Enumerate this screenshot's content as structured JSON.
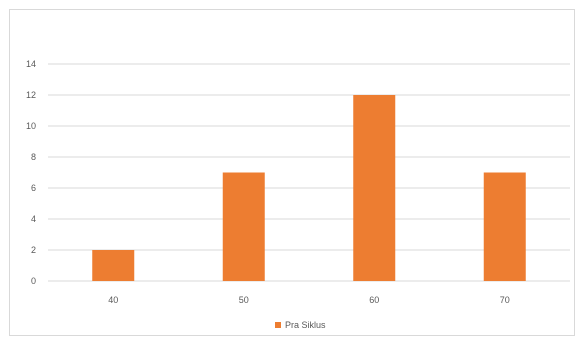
{
  "chart_data": {
    "type": "bar",
    "categories": [
      "40",
      "50",
      "60",
      "70"
    ],
    "series": [
      {
        "name": "Pra Siklus",
        "values": [
          2,
          7,
          12,
          7
        ]
      }
    ],
    "ylim": [
      0,
      14
    ],
    "yticks": [
      0,
      2,
      4,
      6,
      8,
      10,
      12,
      14
    ],
    "grid": true,
    "legend": "bottom",
    "colors": {
      "bar": "#ed7d31",
      "grid": "#d9d9d9",
      "text": "#595959"
    }
  }
}
